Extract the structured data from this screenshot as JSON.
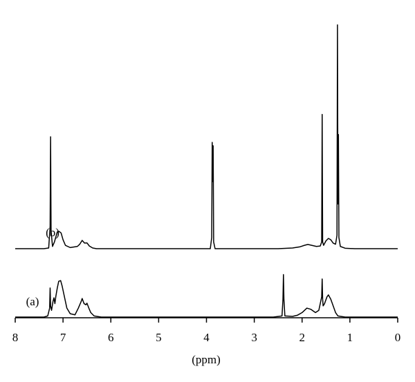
{
  "chart_data": {
    "type": "line",
    "x_label": "(ppm)",
    "xlim": [
      8,
      0
    ],
    "xticks": [
      8,
      7,
      6,
      5,
      4,
      3,
      2,
      1,
      0
    ],
    "series": [
      {
        "name": "(a)",
        "color": "#000000",
        "x": [
          8.0,
          7.4,
          7.32,
          7.28,
          7.27,
          7.26,
          7.24,
          7.21,
          7.19,
          7.17,
          7.15,
          7.12,
          7.09,
          7.05,
          7.02,
          6.98,
          6.92,
          6.85,
          6.75,
          6.68,
          6.62,
          6.6,
          6.56,
          6.52,
          6.5,
          6.46,
          6.42,
          6.35,
          6.2,
          5.0,
          2.6,
          2.42,
          2.4,
          2.39,
          2.38,
          2.36,
          2.2,
          2.1,
          2.0,
          1.9,
          1.82,
          1.72,
          1.65,
          1.59,
          1.58,
          1.57,
          1.56,
          1.53,
          1.48,
          1.45,
          1.4,
          1.35,
          1.3,
          1.25,
          1.1,
          0.0
        ],
        "values": [
          0,
          0,
          0.5,
          4,
          13,
          5,
          3,
          7,
          8.6,
          6,
          9.3,
          13,
          16,
          16.3,
          14,
          10,
          4,
          1.5,
          1,
          4,
          7,
          8.3,
          6,
          5.5,
          6.2,
          4,
          2,
          0.5,
          0,
          0,
          0,
          0.5,
          8,
          19,
          8,
          0.5,
          0.3,
          0.8,
          2,
          4,
          3.5,
          2,
          3,
          9,
          17,
          8,
          5,
          6,
          9,
          9.9,
          8,
          5,
          2,
          0.5,
          0,
          0
        ]
      },
      {
        "name": "(b)",
        "color": "#000000",
        "x": [
          8.0,
          7.4,
          7.3,
          7.27,
          7.26,
          7.25,
          7.22,
          7.18,
          7.12,
          7.08,
          7.04,
          7.0,
          6.95,
          6.85,
          6.7,
          6.65,
          6.6,
          6.55,
          6.5,
          6.45,
          6.38,
          6.3,
          5.0,
          3.92,
          3.89,
          3.88,
          3.87,
          3.86,
          3.85,
          3.82,
          2.5,
          2.2,
          2.05,
          1.95,
          1.88,
          1.8,
          1.7,
          1.62,
          1.59,
          1.58,
          1.57,
          1.55,
          1.5,
          1.45,
          1.4,
          1.35,
          1.3,
          1.27,
          1.26,
          1.25,
          1.24,
          1.23,
          1.2,
          1.1,
          0.9,
          0.0
        ],
        "values": [
          0,
          0,
          0.3,
          10,
          50,
          8,
          1,
          3,
          7.5,
          7.7,
          7,
          4,
          1.5,
          0.5,
          1,
          2,
          3.7,
          2.5,
          2.6,
          1.2,
          0.3,
          0,
          0,
          0,
          5,
          47.5,
          30,
          46,
          3,
          0,
          0,
          0.3,
          0.8,
          1.5,
          1.9,
          1.5,
          1,
          1.2,
          3,
          60,
          3,
          1.5,
          3.5,
          4.6,
          4,
          2.5,
          2,
          6,
          100,
          20,
          51,
          5,
          1,
          0.2,
          0,
          0
        ]
      }
    ]
  }
}
